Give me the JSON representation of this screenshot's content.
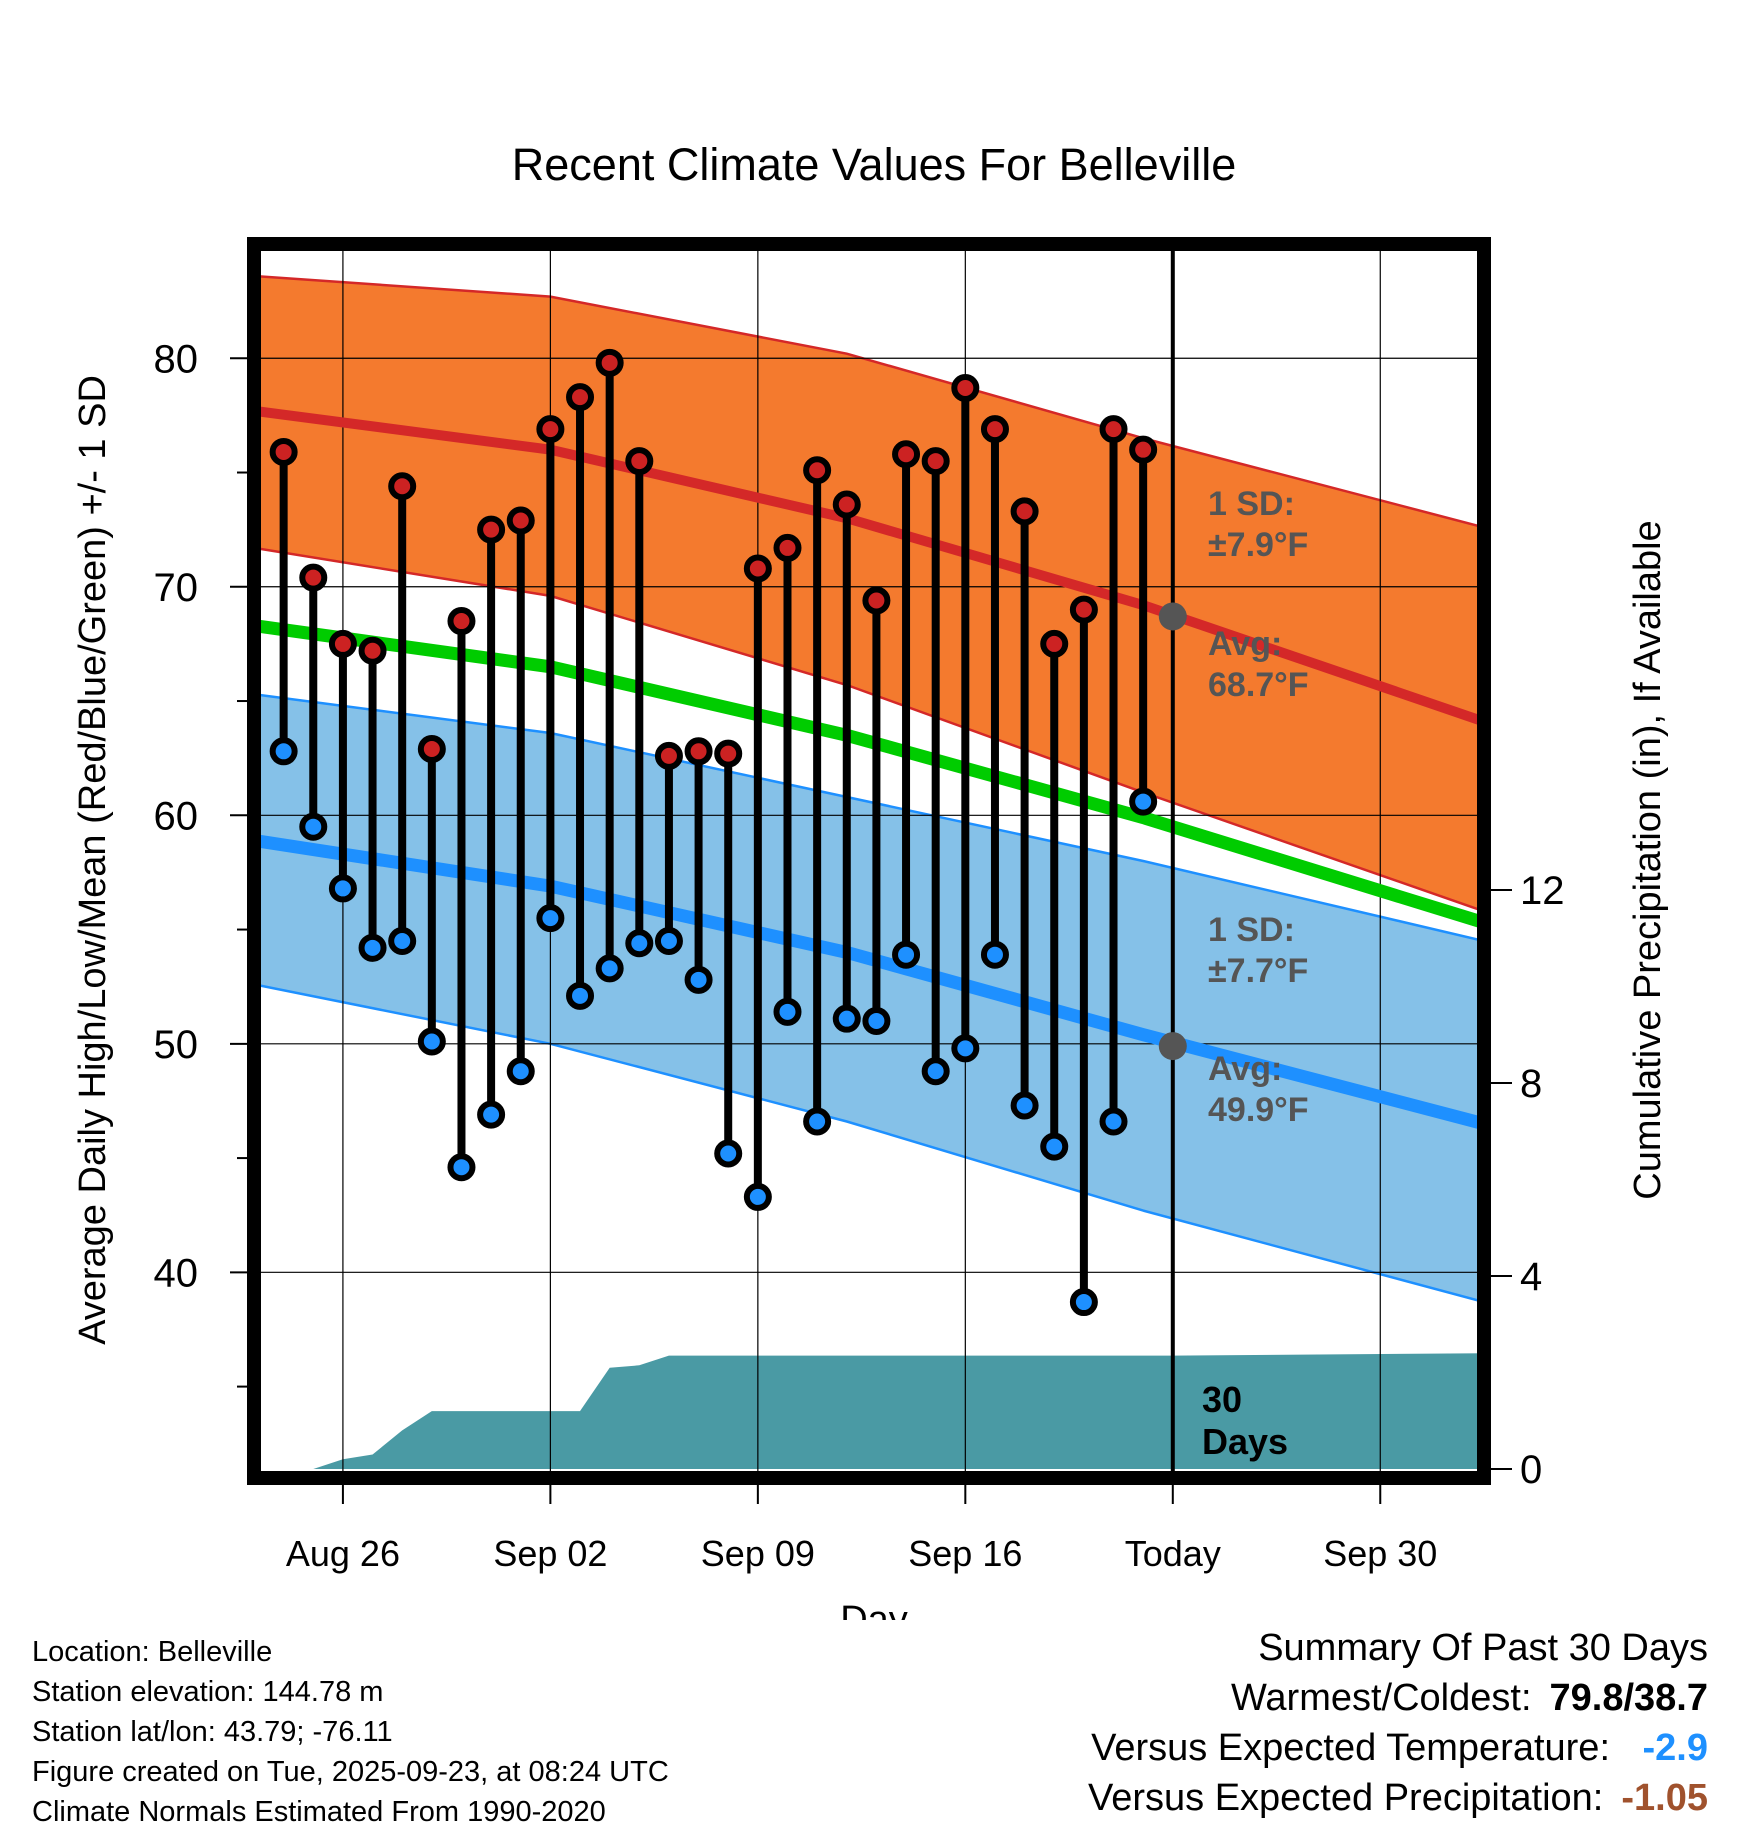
{
  "chart_data": {
    "type": "climate-range",
    "title": "Recent Climate Values For Belleville",
    "xlabel": "Day",
    "ylabel_left": "Average Daily High/Low/Mean (Red/Blue/Green) +/- 1 SD",
    "ylabel_right": "Cumulative Precipitation (in), If Available",
    "y_left_range": [
      31,
      85
    ],
    "y_left_ticks": [
      40,
      50,
      60,
      70,
      80
    ],
    "y_right_range": [
      0,
      15
    ],
    "y_right_ticks": [
      0,
      4,
      8,
      12
    ],
    "x_range_days": [
      0,
      41.5
    ],
    "x_ticks": [
      {
        "day": 3,
        "label": "Aug 26"
      },
      {
        "day": 10,
        "label": "Sep 02"
      },
      {
        "day": 17,
        "label": "Sep 09"
      },
      {
        "day": 24,
        "label": "Sep 16"
      },
      {
        "day": 31,
        "label": "Today"
      },
      {
        "day": 38,
        "label": "Sep 30"
      }
    ],
    "today_day": 31,
    "normals_days": [
      0,
      10,
      20,
      30,
      41.5
    ],
    "normal_high": [
      77.7,
      76.0,
      73.0,
      69.2,
      64.1
    ],
    "normal_high_upper": [
      83.6,
      82.7,
      80.2,
      76.5,
      72.6
    ],
    "normal_high_lower": [
      71.7,
      69.6,
      65.7,
      61.0,
      55.8
    ],
    "normal_mean": [
      68.3,
      66.5,
      63.5,
      59.9,
      55.3
    ],
    "normal_low": [
      58.9,
      56.9,
      54.0,
      50.4,
      46.5
    ],
    "normal_low_upper": [
      65.3,
      63.6,
      60.8,
      58.0,
      54.5
    ],
    "normal_low_lower": [
      52.6,
      50.0,
      46.6,
      42.7,
      38.7
    ],
    "observed": [
      {
        "day": 1,
        "high": 75.9,
        "low": 62.8
      },
      {
        "day": 2,
        "high": 70.4,
        "low": 59.5
      },
      {
        "day": 3,
        "high": 67.5,
        "low": 56.8
      },
      {
        "day": 4,
        "high": 67.2,
        "low": 54.2
      },
      {
        "day": 5,
        "high": 74.4,
        "low": 54.5
      },
      {
        "day": 6,
        "high": 62.9,
        "low": 50.1
      },
      {
        "day": 7,
        "high": 68.5,
        "low": 44.6
      },
      {
        "day": 8,
        "high": 72.5,
        "low": 46.9
      },
      {
        "day": 9,
        "high": 72.9,
        "low": 48.8
      },
      {
        "day": 10,
        "high": 76.9,
        "low": 55.5
      },
      {
        "day": 11,
        "high": 78.3,
        "low": 52.1
      },
      {
        "day": 12,
        "high": 79.8,
        "low": 53.3
      },
      {
        "day": 13,
        "high": 75.5,
        "low": 54.4
      },
      {
        "day": 14,
        "high": 62.6,
        "low": 54.5
      },
      {
        "day": 15,
        "high": 62.8,
        "low": 52.8
      },
      {
        "day": 16,
        "high": 62.7,
        "low": 45.2
      },
      {
        "day": 17,
        "high": 70.8,
        "low": 43.3
      },
      {
        "day": 18,
        "high": 71.7,
        "low": 51.4
      },
      {
        "day": 19,
        "high": 75.1,
        "low": 46.6
      },
      {
        "day": 20,
        "high": 73.6,
        "low": 51.1
      },
      {
        "day": 21,
        "high": 69.4,
        "low": 51.0
      },
      {
        "day": 22,
        "high": 75.8,
        "low": 53.9
      },
      {
        "day": 23,
        "high": 75.5,
        "low": 48.8
      },
      {
        "day": 24,
        "high": 78.7,
        "low": 49.8
      },
      {
        "day": 25,
        "high": 76.9,
        "low": 53.9
      },
      {
        "day": 26,
        "high": 73.3,
        "low": 47.3
      },
      {
        "day": 27,
        "high": 67.5,
        "low": 45.5
      },
      {
        "day": 28,
        "high": 69.0,
        "low": 38.7
      },
      {
        "day": 29,
        "high": 76.9,
        "low": 46.6
      },
      {
        "day": 30,
        "high": 76.0,
        "low": 60.6
      }
    ],
    "precip_cumulative": [
      {
        "day": 0,
        "value": 0.0
      },
      {
        "day": 2,
        "value": 0.0
      },
      {
        "day": 3,
        "value": 0.2
      },
      {
        "day": 4,
        "value": 0.3
      },
      {
        "day": 5,
        "value": 0.8
      },
      {
        "day": 6,
        "value": 1.2
      },
      {
        "day": 11,
        "value": 1.2
      },
      {
        "day": 12,
        "value": 2.1
      },
      {
        "day": 13,
        "value": 2.15
      },
      {
        "day": 14,
        "value": 2.35
      },
      {
        "day": 31,
        "value": 2.35
      },
      {
        "day": 41.5,
        "value": 2.4
      }
    ],
    "annotations": {
      "high_sd_label": "1 SD:",
      "high_sd_value": "±7.9°F",
      "high_avg_label": "Avg:",
      "high_avg_value": "68.7°F",
      "low_sd_label": "1 SD:",
      "low_sd_value": "±7.7°F",
      "low_avg_label": "Avg:",
      "low_avg_value": "49.9°F",
      "today_high_avg": 68.7,
      "today_low_avg": 49.9,
      "days_line1": "30",
      "days_line2": "Days"
    },
    "colors": {
      "high_band": "#f47a2e",
      "high_line": "#d42828",
      "mean_line": "#00cc00",
      "low_band": "#85c1e8",
      "low_line": "#1e90ff",
      "precip": "#4a9aa4",
      "high_dot": "#cc2222",
      "low_dot": "#1e90ff",
      "avg_dot": "#555555"
    }
  },
  "meta": {
    "location": "Location: Belleville",
    "elevation": "Station elevation: 144.78 m",
    "latlon": "Station lat/lon: 43.79; -76.11",
    "created": "Figure created on Tue, 2025-09-23, at 08:24 UTC",
    "normals": "Climate Normals Estimated From 1990-2020"
  },
  "summary": {
    "heading": "Summary Of Past 30 Days",
    "warm_cold_label": "Warmest/Coldest:",
    "warm_cold_value": "79.8/38.7",
    "temp_label": "Versus Expected Temperature:",
    "temp_value": "-2.9",
    "temp_color": "#1e90ff",
    "precip_label": "Versus Expected Precipitation:",
    "precip_value": "-1.05",
    "precip_color": "#a0522d"
  }
}
